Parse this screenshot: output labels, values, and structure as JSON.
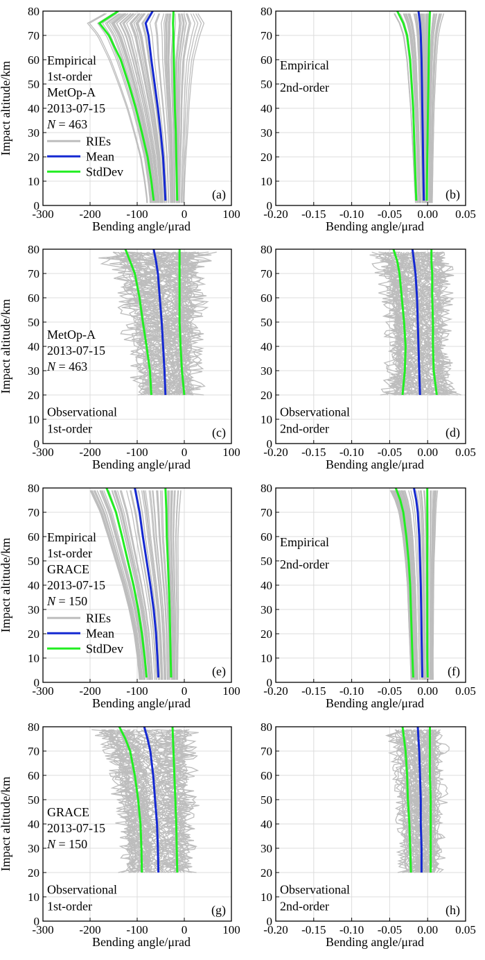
{
  "chart_data": [
    {
      "panel": "(a)",
      "type": "line",
      "kind": "empirical",
      "order": "1st-order",
      "xlim": [
        -300,
        100
      ],
      "ylim": [
        0,
        80
      ],
      "xticks": [
        -300,
        -200,
        -100,
        0,
        100
      ],
      "yticks": [
        0,
        10,
        20,
        30,
        40,
        50,
        60,
        70,
        80
      ],
      "xlabel": "Bending angle/μrad",
      "ylabel": "Impact altitude/km",
      "annotation": [
        "Empirical",
        "1st-order",
        "MetOp-A",
        "2013-07-15",
        "N = 463"
      ],
      "legend": [
        "RIEs",
        "Mean",
        "StdDev"
      ],
      "series": [
        {
          "name": "Mean",
          "x": [
            -40,
            -42,
            -45,
            -50,
            -56,
            -63,
            -70,
            -76,
            -82,
            -67
          ],
          "y": [
            2,
            10,
            20,
            30,
            40,
            50,
            60,
            70,
            75,
            80
          ]
        },
        {
          "name": "StdDev low",
          "x": [
            -65,
            -70,
            -78,
            -90,
            -103,
            -118,
            -135,
            -160,
            -180,
            -140
          ],
          "y": [
            2,
            10,
            20,
            30,
            40,
            50,
            60,
            70,
            75,
            80
          ]
        },
        {
          "name": "StdDev high",
          "x": [
            -15,
            -16,
            -17,
            -18,
            -20,
            -21,
            -22,
            -23,
            -24,
            -23
          ],
          "y": [
            2,
            10,
            20,
            30,
            40,
            50,
            60,
            70,
            75,
            80
          ]
        }
      ]
    },
    {
      "panel": "(b)",
      "type": "line",
      "kind": "empirical",
      "order": "2nd-order",
      "xlim": [
        -0.2,
        0.05
      ],
      "ylim": [
        0,
        80
      ],
      "xticks": [
        -0.2,
        -0.15,
        -0.1,
        -0.05,
        0,
        0.05
      ],
      "yticks": [
        0,
        10,
        20,
        30,
        40,
        50,
        60,
        70,
        80
      ],
      "xlabel": "Bending angle/μrad",
      "ylabel": "",
      "annotation": [
        "Empirical",
        "2nd-order"
      ],
      "series": [
        {
          "name": "Mean",
          "x": [
            -0.005,
            -0.0055,
            -0.006,
            -0.0065,
            -0.007,
            -0.0075,
            -0.008,
            -0.009,
            -0.01,
            -0.012
          ],
          "y": [
            2,
            10,
            20,
            30,
            40,
            50,
            60,
            70,
            75,
            80
          ]
        },
        {
          "name": "StdDev low",
          "x": [
            -0.015,
            -0.016,
            -0.017,
            -0.018,
            -0.019,
            -0.021,
            -0.023,
            -0.027,
            -0.032,
            -0.04
          ],
          "y": [
            2,
            10,
            20,
            30,
            40,
            50,
            60,
            70,
            75,
            80
          ]
        },
        {
          "name": "StdDev high",
          "x": [
            -0.001,
            -0.0008,
            -0.0005,
            0.0,
            0.0005,
            0.001,
            0.0015,
            0.002,
            0.0025,
            0.003
          ],
          "y": [
            2,
            10,
            20,
            30,
            40,
            50,
            60,
            70,
            75,
            80
          ]
        }
      ]
    },
    {
      "panel": "(c)",
      "type": "line",
      "kind": "observational",
      "order": "1st-order",
      "xlim": [
        -300,
        100
      ],
      "ylim": [
        0,
        80
      ],
      "xticks": [
        -300,
        -200,
        -100,
        0,
        100
      ],
      "yticks": [
        0,
        10,
        20,
        30,
        40,
        50,
        60,
        70,
        80
      ],
      "xlabel": "Bending angle/μrad",
      "ylabel": "Impact altitude/km",
      "annotation": [
        "MetOp-A",
        "2013-07-15",
        "N = 463",
        "Observational",
        "1st-order"
      ],
      "series": [
        {
          "name": "Mean",
          "x": [
            -40,
            -42,
            -45,
            -48,
            -52,
            -56,
            -60,
            -65
          ],
          "y": [
            20,
            30,
            40,
            50,
            60,
            70,
            75,
            80
          ]
        },
        {
          "name": "StdDev low",
          "x": [
            -70,
            -73,
            -80,
            -88,
            -95,
            -105,
            -115,
            -125
          ],
          "y": [
            20,
            30,
            40,
            50,
            60,
            70,
            75,
            80
          ]
        },
        {
          "name": "StdDev high",
          "x": [
            0,
            -5,
            -8,
            -10,
            -10,
            -10,
            -10,
            -10
          ],
          "y": [
            20,
            30,
            40,
            50,
            60,
            70,
            75,
            80
          ]
        }
      ]
    },
    {
      "panel": "(d)",
      "type": "line",
      "kind": "observational",
      "order": "2nd-order",
      "xlim": [
        -0.2,
        0.05
      ],
      "ylim": [
        0,
        80
      ],
      "xticks": [
        -0.2,
        -0.15,
        -0.1,
        -0.05,
        0,
        0.05
      ],
      "yticks": [
        0,
        10,
        20,
        30,
        40,
        50,
        60,
        70,
        80
      ],
      "xlabel": "Bending angle/μrad",
      "ylabel": "",
      "annotation": [
        "Observational",
        "2nd-order"
      ],
      "series": [
        {
          "name": "Mean",
          "x": [
            -0.01,
            -0.011,
            -0.012,
            -0.013,
            -0.014,
            -0.016,
            -0.018,
            -0.02
          ],
          "y": [
            20,
            30,
            40,
            50,
            60,
            70,
            75,
            80
          ]
        },
        {
          "name": "StdDev low",
          "x": [
            -0.033,
            -0.03,
            -0.029,
            -0.031,
            -0.034,
            -0.037,
            -0.04,
            -0.045
          ],
          "y": [
            20,
            30,
            40,
            50,
            60,
            70,
            75,
            80
          ]
        },
        {
          "name": "StdDev high",
          "x": [
            0.012,
            0.008,
            0.007,
            0.007,
            0.006,
            0.006,
            0.005,
            0.005
          ],
          "y": [
            20,
            30,
            40,
            50,
            60,
            70,
            75,
            80
          ]
        }
      ]
    },
    {
      "panel": "(e)",
      "type": "line",
      "kind": "empirical",
      "order": "1st-order",
      "xlim": [
        -300,
        100
      ],
      "ylim": [
        0,
        80
      ],
      "xticks": [
        -300,
        -200,
        -100,
        0,
        100
      ],
      "yticks": [
        0,
        10,
        20,
        30,
        40,
        50,
        60,
        70,
        80
      ],
      "xlabel": "Bending angle/μrad",
      "ylabel": "Impact altitude/km",
      "annotation": [
        "Empirical",
        "1st-order",
        "GRACE",
        "2013-07-15",
        "N = 150"
      ],
      "legend": [
        "RIEs",
        "Mean",
        "StdDev"
      ],
      "series": [
        {
          "name": "Mean",
          "x": [
            -55,
            -57,
            -60,
            -65,
            -72,
            -80,
            -88,
            -95,
            -100,
            -105
          ],
          "y": [
            2,
            10,
            20,
            30,
            40,
            50,
            60,
            70,
            75,
            80
          ]
        },
        {
          "name": "StdDev low",
          "x": [
            -80,
            -84,
            -90,
            -98,
            -108,
            -120,
            -132,
            -145,
            -155,
            -165
          ],
          "y": [
            2,
            10,
            20,
            30,
            40,
            50,
            60,
            70,
            75,
            80
          ]
        },
        {
          "name": "StdDev high",
          "x": [
            -28,
            -29,
            -30,
            -31,
            -33,
            -35,
            -37,
            -38,
            -39,
            -40
          ],
          "y": [
            2,
            10,
            20,
            30,
            40,
            50,
            60,
            70,
            75,
            80
          ]
        }
      ]
    },
    {
      "panel": "(f)",
      "type": "line",
      "kind": "empirical",
      "order": "2nd-order",
      "xlim": [
        -0.2,
        0.05
      ],
      "ylim": [
        0,
        80
      ],
      "xticks": [
        -0.2,
        -0.15,
        -0.1,
        -0.05,
        0,
        0.05
      ],
      "yticks": [
        0,
        10,
        20,
        30,
        40,
        50,
        60,
        70,
        80
      ],
      "xlabel": "Bending angle/μrad",
      "ylabel": "",
      "annotation": [
        "Empirical",
        "2nd-order"
      ],
      "series": [
        {
          "name": "Mean",
          "x": [
            -0.007,
            -0.0075,
            -0.008,
            -0.0085,
            -0.009,
            -0.01,
            -0.011,
            -0.013,
            -0.015,
            -0.018
          ],
          "y": [
            2,
            10,
            20,
            30,
            40,
            50,
            60,
            70,
            75,
            80
          ]
        },
        {
          "name": "StdDev low",
          "x": [
            -0.019,
            -0.02,
            -0.021,
            -0.022,
            -0.023,
            -0.025,
            -0.028,
            -0.032,
            -0.036,
            -0.042
          ],
          "y": [
            2,
            10,
            20,
            30,
            40,
            50,
            60,
            70,
            75,
            80
          ]
        },
        {
          "name": "StdDev high",
          "x": [
            0.0,
            -0.0005,
            -0.0005,
            -0.0005,
            -0.0005,
            -0.0005,
            -0.0005,
            -0.0005,
            -0.0005,
            -0.0005
          ],
          "y": [
            2,
            10,
            20,
            30,
            40,
            50,
            60,
            70,
            75,
            80
          ]
        }
      ]
    },
    {
      "panel": "(g)",
      "type": "line",
      "kind": "observational",
      "order": "1st-order",
      "xlim": [
        -300,
        100
      ],
      "ylim": [
        0,
        80
      ],
      "xticks": [
        -300,
        -200,
        -100,
        0,
        100
      ],
      "yticks": [
        0,
        10,
        20,
        30,
        40,
        50,
        60,
        70,
        80
      ],
      "xlabel": "Bending angle/μrad",
      "ylabel": "Impact altitude/km",
      "annotation": [
        "GRACE",
        "2013-07-15",
        "N = 150",
        "Observational",
        "1st-order"
      ],
      "series": [
        {
          "name": "Mean",
          "x": [
            -55,
            -56,
            -58,
            -62,
            -66,
            -72,
            -78,
            -85
          ],
          "y": [
            20,
            30,
            40,
            50,
            60,
            70,
            75,
            80
          ]
        },
        {
          "name": "StdDev low",
          "x": [
            -90,
            -91,
            -93,
            -98,
            -105,
            -115,
            -125,
            -138
          ],
          "y": [
            20,
            30,
            40,
            50,
            60,
            70,
            75,
            80
          ]
        },
        {
          "name": "StdDev high",
          "x": [
            -15,
            -16,
            -17,
            -19,
            -21,
            -23,
            -24,
            -25
          ],
          "y": [
            20,
            30,
            40,
            50,
            60,
            70,
            75,
            80
          ]
        }
      ]
    },
    {
      "panel": "(h)",
      "type": "line",
      "kind": "observational",
      "order": "2nd-order",
      "xlim": [
        -0.2,
        0.05
      ],
      "ylim": [
        0,
        80
      ],
      "xticks": [
        -0.2,
        -0.15,
        -0.1,
        -0.05,
        0,
        0.05
      ],
      "yticks": [
        0,
        10,
        20,
        30,
        40,
        50,
        60,
        70,
        80
      ],
      "xlabel": "Bending angle/μrad",
      "ylabel": "",
      "annotation": [
        "Observational",
        "2nd-order"
      ],
      "series": [
        {
          "name": "Mean",
          "x": [
            -0.008,
            -0.008,
            -0.009,
            -0.009,
            -0.01,
            -0.011,
            -0.012,
            -0.013
          ],
          "y": [
            20,
            30,
            40,
            50,
            60,
            70,
            75,
            80
          ]
        },
        {
          "name": "StdDev low",
          "x": [
            -0.022,
            -0.023,
            -0.024,
            -0.026,
            -0.027,
            -0.029,
            -0.031,
            -0.033
          ],
          "y": [
            20,
            30,
            40,
            50,
            60,
            70,
            75,
            80
          ]
        },
        {
          "name": "StdDev high",
          "x": [
            0.004,
            0.004,
            0.004,
            0.004,
            0.003,
            0.003,
            0.003,
            0.003
          ],
          "y": [
            20,
            30,
            40,
            50,
            60,
            70,
            75,
            80
          ]
        }
      ]
    }
  ],
  "colors": {
    "ries": "#bdbdbd",
    "mean": "#1428d2",
    "stddev": "#22ee22",
    "grid": "#dcdcdc",
    "axis": "#000000"
  }
}
